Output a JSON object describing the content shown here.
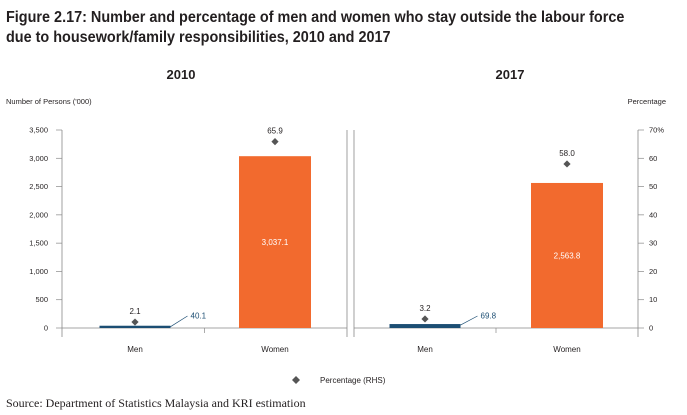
{
  "title": "Figure 2.17: Number and percentage of men and women who stay outside the labour force due to housework/family responsibilities, 2010 and 2017",
  "source": "Source: Department of Statistics Malaysia and KRI estimation",
  "colors": {
    "men": "#1c4e73",
    "women": "#f26a2e",
    "percentage_marker": "#555555",
    "men_label": "#1c4e73",
    "axis": "#888888",
    "text": "#231f20"
  },
  "chart_data": {
    "type": "bar",
    "panels": [
      "2010",
      "2017"
    ],
    "categories": [
      "Men",
      "Women"
    ],
    "ylabel_left": "Number of Persons ('000)",
    "ylabel_right": "Percentage",
    "y_left_range": [
      0,
      3500
    ],
    "y_left_ticks": [
      "0",
      "500",
      "1,000",
      "1,500",
      "2,000",
      "2,500",
      "3,000",
      "3,500"
    ],
    "y_right_range": [
      0,
      70
    ],
    "y_right_ticks": [
      "0",
      "10",
      "20",
      "30",
      "40",
      "50",
      "60",
      "70%"
    ],
    "grid": false,
    "legend_position": "bottom-center",
    "series": [
      {
        "name": "",
        "axis": "left",
        "kind": "bar",
        "data": [
          {
            "panel": "2010",
            "category": "Men",
            "value": 40.1,
            "label": "40.1"
          },
          {
            "panel": "2010",
            "category": "Women",
            "value": 3037.1,
            "label": "3,037.1"
          },
          {
            "panel": "2017",
            "category": "Men",
            "value": 69.8,
            "label": "69.8"
          },
          {
            "panel": "2017",
            "category": "Women",
            "value": 2563.8,
            "label": "2,563.8"
          }
        ]
      },
      {
        "name": "Percentage (RHS)",
        "axis": "right",
        "kind": "marker",
        "data": [
          {
            "panel": "2010",
            "category": "Men",
            "value": 2.1,
            "label": "2.1"
          },
          {
            "panel": "2010",
            "category": "Women",
            "value": 65.9,
            "label": "65.9"
          },
          {
            "panel": "2017",
            "category": "Men",
            "value": 3.2,
            "label": "3.2"
          },
          {
            "panel": "2017",
            "category": "Women",
            "value": 58.0,
            "label": "58.0"
          }
        ]
      }
    ]
  }
}
